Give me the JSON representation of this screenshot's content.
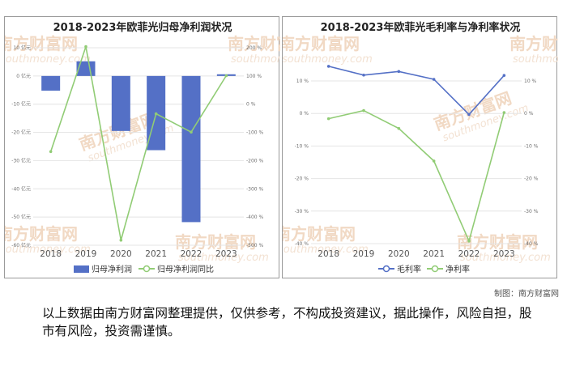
{
  "charts": {
    "left": {
      "title": "2018-2023年欧菲光归母净利润状况",
      "legend": [
        "归母净利润",
        "归母净利润同比"
      ]
    },
    "right": {
      "title": "2018-2023年欧菲光毛利率与净利率状况",
      "legend": [
        "毛利率",
        "净利率"
      ]
    }
  },
  "watermark": {
    "brand": "南方财富网",
    "site": "southmoney.com"
  },
  "credit": "制图：南方财富网",
  "disclaimer": "以上数据由南方财富网整理提供，仅供参考，不构成投资建议，据此操作，风险自担，股市有风险，投资需谨慎。",
  "colors": {
    "bar": "#5470c6",
    "yoy_line": "#91cc75",
    "gross_line": "#5470c6",
    "net_line": "#91cc75"
  },
  "chart_data": [
    {
      "type": "bar",
      "title": "2018-2023年欧菲光归母净利润状况",
      "categories": [
        "2018",
        "2019",
        "2020",
        "2021",
        "2022",
        "2023"
      ],
      "series": [
        {
          "name": "归母净利润",
          "type": "bar",
          "axis": "left",
          "values": [
            -5.2,
            5.2,
            -19.5,
            -26.3,
            -51.8,
            0.6
          ]
        },
        {
          "name": "归母净利润同比",
          "type": "line",
          "axis": "right",
          "values": [
            -168,
            204,
            -482,
            -34,
            -99,
            101
          ]
        }
      ],
      "yaxis_left": {
        "min": -60,
        "max": 10,
        "step": 10,
        "ticks": [
          "10 亿元",
          "0 亿元",
          "-10 亿元",
          "-20 亿元",
          "-30 亿元",
          "-40 亿元",
          "-50 亿元",
          "-60 亿元"
        ]
      },
      "yaxis_right": {
        "min": -500,
        "max": 200,
        "step": 100,
        "ticks": [
          "200 %",
          "100 %",
          "0 %",
          "-100 %",
          "-200 %",
          "-300 %",
          "-400 %",
          "-500 %"
        ]
      },
      "grid": true,
      "legend_position": "bottom"
    },
    {
      "type": "line",
      "title": "2018-2023年欧菲光毛利率与净利率状况",
      "categories": [
        "2018",
        "2019",
        "2020",
        "2021",
        "2022",
        "2023"
      ],
      "series": [
        {
          "name": "毛利率",
          "axis": "left",
          "values": [
            14.5,
            11.8,
            12.9,
            10.5,
            -0.3,
            11.7
          ]
        },
        {
          "name": "净利率",
          "axis": "right",
          "values": [
            -1.6,
            0.9,
            -4.6,
            -14.6,
            -39.2,
            0.3
          ]
        }
      ],
      "yaxis_left": {
        "min": -40,
        "max": 20,
        "step": 10,
        "ticks": [
          "10 %",
          "0 %",
          "-10 %",
          "-20 %",
          "-30 %",
          "-40 %"
        ]
      },
      "yaxis_right": {
        "min": -40,
        "max": 10,
        "step": 10,
        "ticks": [
          "10 %",
          "0 %",
          "-10 %",
          "-20 %",
          "-30 %",
          "-40 %"
        ]
      },
      "grid": true,
      "legend_position": "bottom"
    }
  ]
}
